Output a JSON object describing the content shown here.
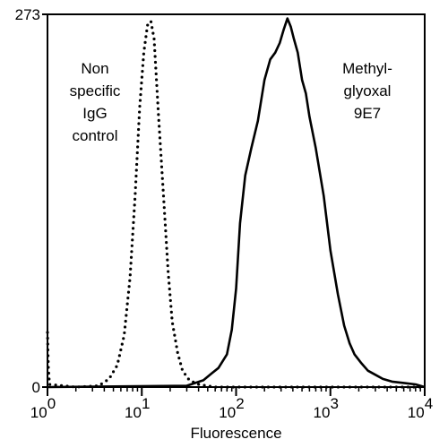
{
  "chart_data": {
    "type": "line",
    "title": "",
    "xlabel": "Fluorescence",
    "ylabel": "",
    "x_scale": "log",
    "xlim": [
      1,
      10000
    ],
    "ylim": [
      0,
      273
    ],
    "x_ticks": [
      {
        "value": 1,
        "base": "10",
        "exp": "0"
      },
      {
        "value": 10,
        "base": "10",
        "exp": "1"
      },
      {
        "value": 100,
        "base": "10",
        "exp": "2"
      },
      {
        "value": 1000,
        "base": "10",
        "exp": "3"
      },
      {
        "value": 10000,
        "base": "10",
        "exp": "4"
      }
    ],
    "y_ticks": [
      {
        "value": 0,
        "label": "0"
      },
      {
        "value": 273,
        "label": "273"
      }
    ],
    "grid": false,
    "series": [
      {
        "name": "Non specific IgG control",
        "label_lines": [
          "Non",
          "specific",
          "IgG",
          "control"
        ],
        "style": "dotted",
        "color": "#000000",
        "points": [
          [
            1,
            40
          ],
          [
            1.02,
            15
          ],
          [
            1.05,
            2
          ],
          [
            2,
            0
          ],
          [
            3.5,
            1
          ],
          [
            4.5,
            6
          ],
          [
            5.5,
            16
          ],
          [
            6.5,
            38
          ],
          [
            7.5,
            80
          ],
          [
            8.5,
            140
          ],
          [
            9.5,
            205
          ],
          [
            10.5,
            245
          ],
          [
            11.5,
            265
          ],
          [
            12.5,
            268
          ],
          [
            13.5,
            255
          ],
          [
            15,
            200
          ],
          [
            17,
            140
          ],
          [
            19,
            85
          ],
          [
            21,
            48
          ],
          [
            24,
            25
          ],
          [
            27,
            12
          ],
          [
            32,
            5
          ],
          [
            40,
            2
          ],
          [
            60,
            0
          ],
          [
            10000,
            0
          ]
        ]
      },
      {
        "name": "Methyl-glyoxal 9E7",
        "label_lines": [
          "Methyl-",
          "glyoxal",
          "9E7"
        ],
        "style": "solid",
        "color": "#000000",
        "points": [
          [
            1,
            0
          ],
          [
            30,
            1
          ],
          [
            45,
            5
          ],
          [
            55,
            10
          ],
          [
            65,
            14
          ],
          [
            80,
            24
          ],
          [
            90,
            42
          ],
          [
            100,
            72
          ],
          [
            110,
            120
          ],
          [
            125,
            155
          ],
          [
            145,
            175
          ],
          [
            170,
            195
          ],
          [
            200,
            225
          ],
          [
            230,
            240
          ],
          [
            260,
            245
          ],
          [
            290,
            252
          ],
          [
            320,
            262
          ],
          [
            350,
            270
          ],
          [
            380,
            264
          ],
          [
            410,
            255
          ],
          [
            450,
            245
          ],
          [
            500,
            225
          ],
          [
            550,
            215
          ],
          [
            600,
            198
          ],
          [
            700,
            175
          ],
          [
            850,
            140
          ],
          [
            1000,
            100
          ],
          [
            1200,
            68
          ],
          [
            1400,
            45
          ],
          [
            1600,
            32
          ],
          [
            1800,
            24
          ],
          [
            2100,
            18
          ],
          [
            2500,
            12
          ],
          [
            3000,
            9
          ],
          [
            3600,
            6
          ],
          [
            4500,
            4
          ],
          [
            6000,
            3
          ],
          [
            8000,
            2
          ],
          [
            10000,
            0
          ]
        ]
      }
    ]
  }
}
